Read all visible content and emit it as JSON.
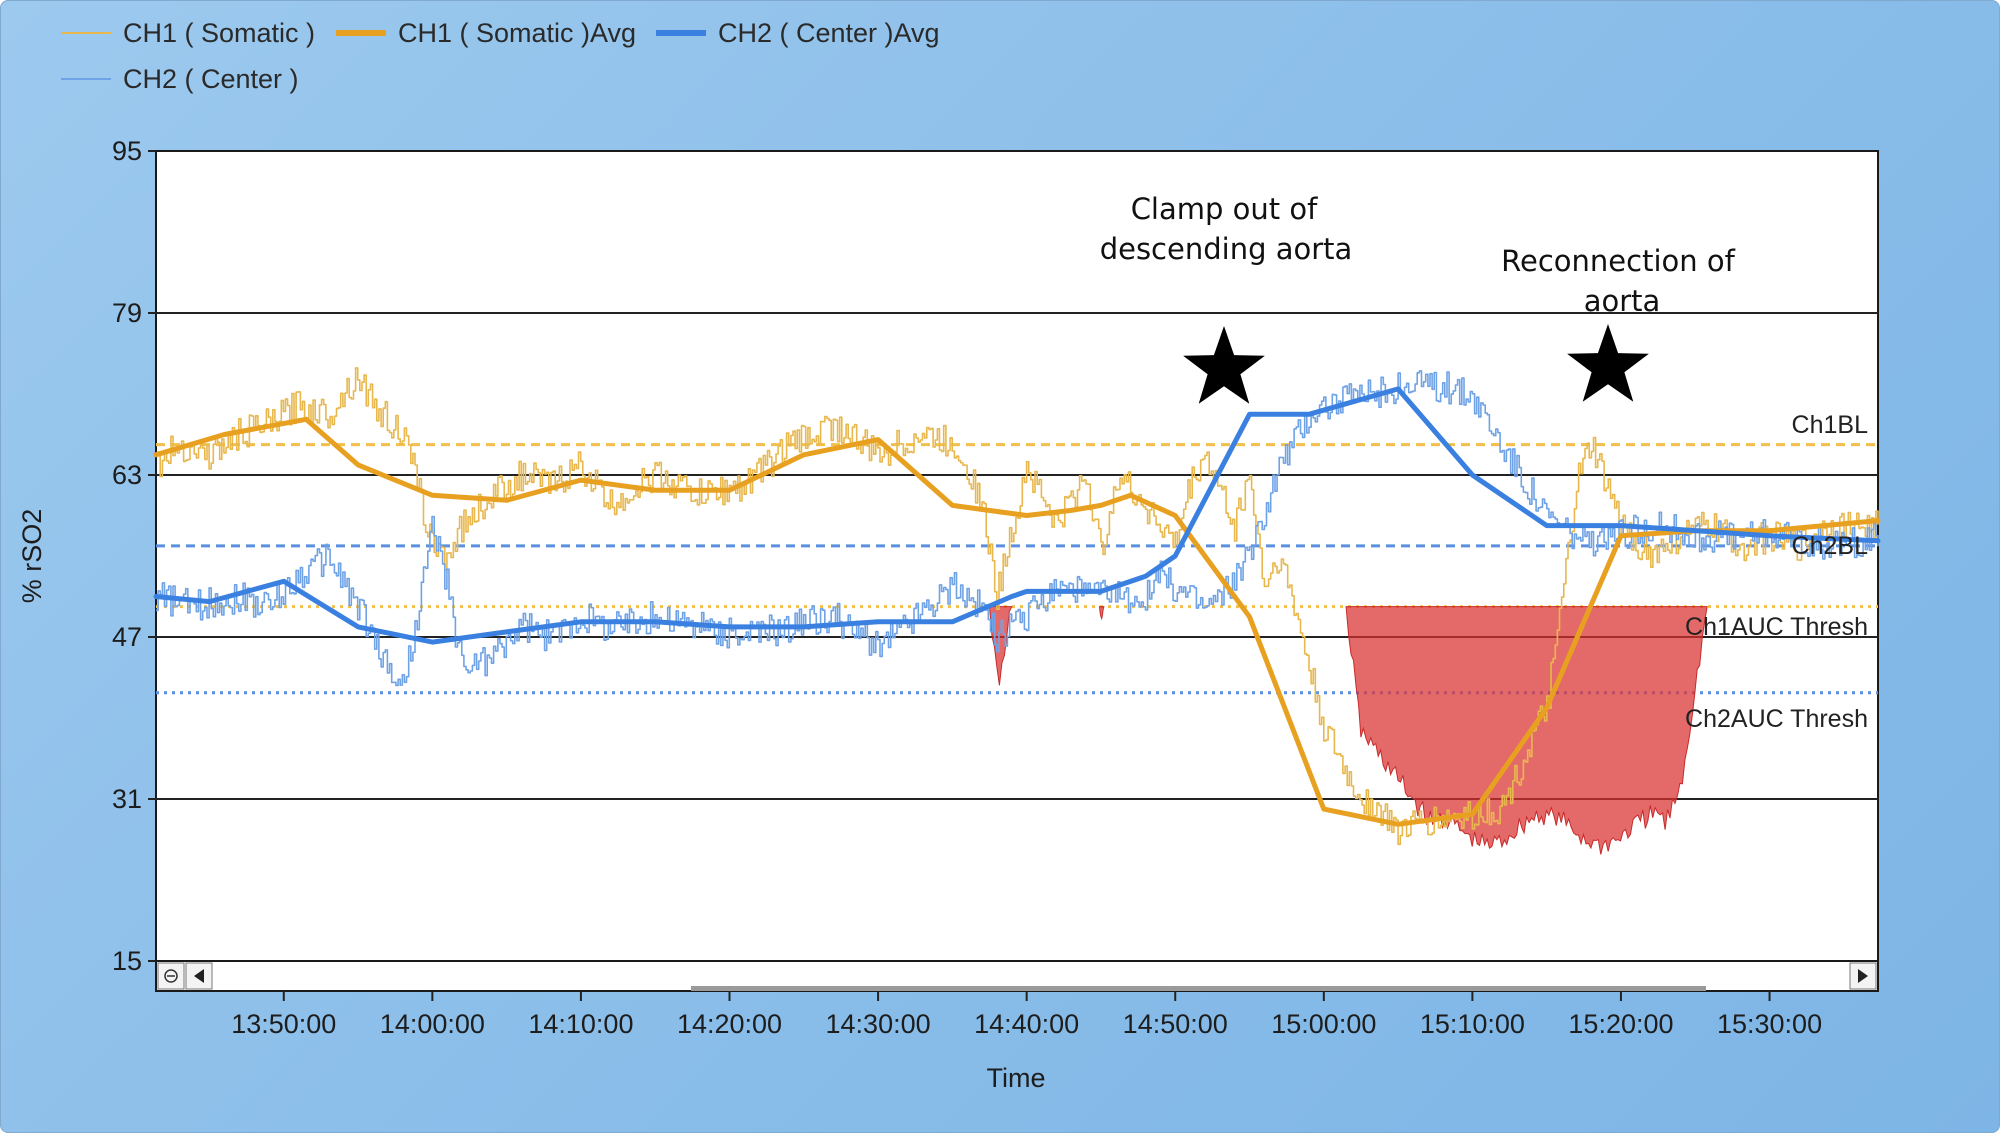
{
  "chart_data": {
    "type": "line",
    "xlabel": "Time",
    "ylabel": "% rSO2",
    "ylim": [
      15,
      95
    ],
    "yticks": [
      15,
      31,
      47,
      63,
      79,
      95
    ],
    "xticks": [
      "13:50:00",
      "14:00:00",
      "14:10:00",
      "14:20:00",
      "14:30:00",
      "14:40:00",
      "14:50:00",
      "15:00:00",
      "15:10:00",
      "15:20:00",
      "15:30:00"
    ],
    "xrange_minutes": [
      -8.6,
      107.3
    ],
    "legend_position": "top-left",
    "legend": [
      {
        "name": "CH1 ( Somatic )",
        "color": "#e8b84e",
        "style": "thin"
      },
      {
        "name": "CH1 ( Somatic )Avg",
        "color": "#e8a020",
        "style": "thick"
      },
      {
        "name": "CH2 ( Center  )Avg",
        "color": "#3a80e0",
        "style": "thick"
      },
      {
        "name": "CH2 ( Center  )",
        "color": "#6fa3e6",
        "style": "thin"
      }
    ],
    "reference_lines": [
      {
        "label": "Ch1BL",
        "value": 66,
        "color": "#f2c04a",
        "style": "dashed"
      },
      {
        "label": "Ch2BL",
        "value": 56,
        "color": "#5b8fe0",
        "style": "dashed"
      },
      {
        "label": "Ch1AUC Thresh",
        "value": 50,
        "color": "#f2c04a",
        "style": "dotted"
      },
      {
        "label": "Ch2AUC Thresh",
        "value": 41.5,
        "color": "#5b8fe0",
        "style": "dotted"
      }
    ],
    "series": [
      {
        "name": "CH1 ( Somatic )Avg",
        "x": [
          -8.6,
          -4,
          1.5,
          5,
          10,
          15,
          20,
          25,
          30,
          35,
          40,
          45,
          50,
          53,
          55,
          57,
          60,
          65,
          70,
          75,
          80,
          85,
          90,
          95,
          100,
          107.3
        ],
        "y": [
          65,
          67,
          68.5,
          64,
          61,
          60.5,
          62.5,
          61.5,
          61.5,
          65,
          66.5,
          60,
          59,
          59.5,
          60,
          61,
          59,
          49,
          30,
          28.5,
          29.5,
          40,
          57,
          57.5,
          57.5,
          58.5
        ]
      },
      {
        "name": "CH2 ( Center  )Avg",
        "x": [
          -8.6,
          -5,
          0,
          5,
          10,
          15,
          20,
          25,
          30,
          35,
          40,
          45,
          49,
          50,
          55,
          58,
          60,
          65,
          69,
          75,
          80,
          85,
          90,
          100,
          107.3
        ],
        "y": [
          51,
          50.5,
          52.5,
          48,
          46.5,
          47.5,
          48.5,
          48.5,
          48,
          48,
          48.5,
          48.5,
          51,
          51.5,
          51.5,
          53,
          55,
          69,
          69,
          71.5,
          63,
          58,
          58,
          57,
          56.5
        ]
      },
      {
        "name": "CH1 ( Somatic )",
        "x": [
          -8.6,
          -7,
          -5,
          -3,
          -1,
          1,
          3,
          5,
          6,
          8,
          9,
          10,
          11,
          12,
          14,
          16,
          18,
          20,
          22,
          25,
          28,
          31,
          34,
          37,
          40,
          43,
          45,
          46,
          47,
          48,
          50,
          52,
          54,
          55,
          56,
          58,
          60,
          61,
          62,
          64,
          65,
          66,
          67,
          68,
          70,
          72,
          75,
          78,
          82,
          85,
          86,
          87,
          88,
          90,
          92,
          94,
          96,
          98,
          100,
          102,
          104,
          106,
          107.3
        ],
        "y": [
          64,
          66,
          65,
          67,
          68,
          70,
          69,
          73,
          70,
          67,
          62,
          56,
          55,
          58,
          61,
          63,
          62,
          64,
          60,
          63,
          61,
          62,
          66,
          68,
          65,
          67,
          66,
          64,
          60,
          51,
          64,
          58,
          63,
          55,
          63,
          60,
          56,
          62,
          65,
          58,
          63,
          52,
          55,
          50,
          38,
          32,
          28,
          29,
          30,
          40,
          50,
          62,
          66,
          58,
          55,
          57,
          58,
          56,
          57,
          56,
          58,
          58,
          58
        ]
      },
      {
        "name": "CH2 ( Center  )",
        "x": [
          -8.6,
          -6,
          -3,
          -1,
          1,
          3,
          5,
          6,
          7,
          8,
          9,
          10,
          11,
          12,
          14,
          16,
          18,
          20,
          22,
          25,
          28,
          31,
          34,
          37,
          40,
          45,
          47,
          48,
          50,
          52,
          55,
          57,
          58,
          59,
          60,
          62,
          63,
          65,
          67,
          69,
          70,
          75,
          77,
          80,
          82,
          85,
          88,
          90,
          92,
          95,
          100,
          105,
          107.3
        ],
        "y": [
          51,
          50,
          51,
          50,
          53,
          55,
          50,
          47,
          44,
          42,
          49,
          58,
          52,
          44,
          45,
          48,
          47,
          49,
          48,
          49,
          48,
          47,
          48,
          49,
          46,
          52,
          50,
          47,
          49,
          52,
          51,
          51,
          51,
          53,
          52,
          50,
          51,
          55,
          64,
          69,
          70,
          71.5,
          72,
          71,
          66,
          59,
          56,
          57,
          58,
          57,
          57,
          56,
          57
        ]
      }
    ],
    "auc_regions": [
      {
        "x": [
          47.5,
          49.0
        ],
        "min_value": 42
      },
      {
        "x": [
          71.5,
          95.8
        ],
        "min_value": 25.5
      },
      {
        "x": [
          54.9,
          55.2
        ],
        "min_value": 48.7
      }
    ],
    "annotations": [
      {
        "text_lines": [
          "Clamp out of",
          "descending aorta"
        ],
        "marker": "★",
        "x": 53.1
      },
      {
        "text_lines": [
          "Reconnection of",
          "aorta"
        ],
        "marker": "★",
        "x": 79.0
      }
    ]
  }
}
